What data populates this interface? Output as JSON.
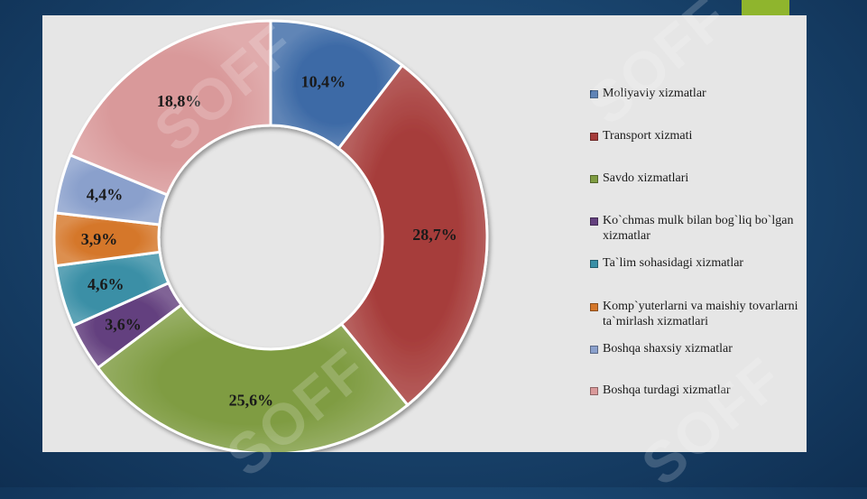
{
  "chart_data": {
    "type": "pie",
    "donut": true,
    "categories": [
      "Moliyaviy xizmatlar",
      "Transport xizmati",
      "Savdo xizmatlari",
      "Ko`chmas mulk bilan bog`liq bo`lgan xizmatlar",
      "Ta`lim sohasidagi xizmatlar",
      "Komp`yuterlarni va maishiy tovarlarni ta`mirlash xizmatlari",
      "Boshqa shaxsiy xizmatlar",
      "Boshqa turdagi xizmatlar"
    ],
    "values": [
      10.4,
      28.7,
      25.6,
      3.6,
      4.6,
      3.9,
      4.4,
      18.8
    ],
    "labels": [
      "10,4%",
      "28,7%",
      "25,6%",
      "3,6%",
      "4,6%",
      "3,9%",
      "4,4%",
      "18,8%"
    ],
    "colors": [
      "#3d6aa6",
      "#a63c3a",
      "#7f9c42",
      "#64417f",
      "#3a8fa6",
      "#d5772a",
      "#8aa0cc",
      "#d9999a"
    ],
    "legend_position": "right"
  },
  "watermark": {
    "text": "SOFF",
    "color": "#ffffff"
  },
  "theme": {
    "accent": "#8fb52d",
    "panel": "#e6e6e6"
  }
}
